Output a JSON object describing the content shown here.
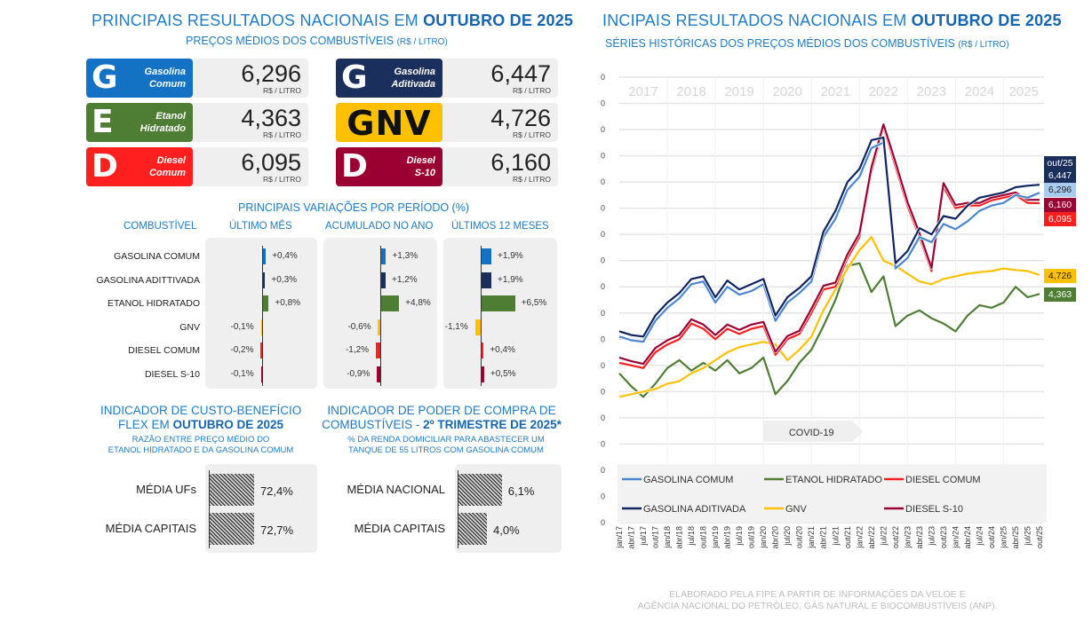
{
  "left": {
    "title_prefix": "PRINCIPAIS RESULTADOS NACIONAIS EM ",
    "title_bold": "OUTUBRO DE 2025",
    "subtitle": "PREÇOS MÉDIOS DOS COMBUSTÍVEIS",
    "subtitle_unit": "(R$ / LITRO)",
    "unit": "R$ / LITRO",
    "prices": [
      {
        "letter": "G",
        "name1": "Gasolina",
        "name2": "Comum",
        "value": "6,296",
        "color": "#1472c4"
      },
      {
        "letter": "G",
        "name1": "Gasolina",
        "name2": "Aditivada",
        "value": "6,447",
        "color": "#1a2f5c"
      },
      {
        "letter": "E",
        "name1": "Etanol",
        "name2": "Hidratado",
        "value": "4,363",
        "color": "#4e7d34"
      },
      {
        "letter": "GNV",
        "name1": "",
        "name2": "",
        "value": "4,726",
        "color": "#ffc000"
      },
      {
        "letter": "D",
        "name1": "Diesel",
        "name2": "Comum",
        "value": "6,095",
        "color": "#ff1f1f"
      },
      {
        "letter": "D",
        "name1": "Diesel",
        "name2": "S-10",
        "value": "6,160",
        "color": "#9b0033"
      }
    ],
    "variations": {
      "title": "PRINCIPAIS VARIAÇÕES POR PERÍODO (%)",
      "col_fuel": "COMBUSTÍVEL",
      "periods": [
        "ÚLTIMO MÊS",
        "ACUMULADO NO ANO",
        "ÚLTIMOS 12 MESES"
      ],
      "fuels": [
        "GASOLINA COMUM",
        "GASOLINA ADITTIVADA",
        "ETANOL HIDRATADO",
        "GNV",
        "DIESEL COMUM",
        "DIESEL  S-10"
      ],
      "colors": [
        "#1472c4",
        "#1a2f5c",
        "#4e7d34",
        "#ffc000",
        "#ff1f1f",
        "#9b0033"
      ],
      "values": [
        [
          0.4,
          0.3,
          0.8,
          -0.1,
          -0.2,
          -0.1
        ],
        [
          1.3,
          1.2,
          4.8,
          -0.6,
          -1.2,
          -0.9
        ],
        [
          1.9,
          1.9,
          6.5,
          -1.1,
          0.4,
          0.5
        ]
      ],
      "labels": [
        [
          "+0,4%",
          "+0,3%",
          "+0,8%",
          "-0,1%",
          "-0,2%",
          "-0,1%"
        ],
        [
          "+1,3%",
          "+1,2%",
          "+4,8%",
          "-0,6%",
          "-1,2%",
          "-0,9%"
        ],
        [
          "+1,9%",
          "+1,9%",
          "+6,5%",
          "-1,1%",
          "+0,4%",
          "+0,5%"
        ]
      ]
    },
    "flex": {
      "title1": "INDICADOR DE CUSTO-BENEFÍCIO",
      "title2_prefix": "FLEX EM ",
      "title2_bold": "OUTUBRO  DE 2025",
      "sub1": "RAZÃO ENTRE PREÇO MÉDIO DO",
      "sub2": "ETANOL HIDRATADO E DA GASOLINA COMUM",
      "rows": [
        {
          "label": "MÉDIA UFs",
          "value": 72.4,
          "text": "72,4%"
        },
        {
          "label": "MÉDIA CAPITAIS",
          "value": 72.7,
          "text": "72,7%"
        }
      ]
    },
    "power": {
      "title1": "INDICADOR DE PODER DE COMPRA DE",
      "title2_prefix": "COMBUSTÍVEIS - ",
      "title2_bold": "2º TRIMESTRE DE 2025*",
      "sub1": "% DA RENDA DOMICILIAR PARA ABASTECER UM",
      "sub2": "TANQUE DE 55 LITROS COM GASOLINA COMUM",
      "rows": [
        {
          "label": "MÉDIA NACIONAL",
          "value": 6.1,
          "text": "6,1%"
        },
        {
          "label": "MÉDIA CAPITAIS",
          "value": 4.0,
          "text": "4,0%"
        }
      ]
    }
  },
  "right": {
    "title_prefix": "INCIPAIS RESULTADOS NACIONAIS EM ",
    "title_bold": "OUTUBRO DE 2025",
    "subtitle": "SÉRIES HISTÓRICAS DOS PREÇOS MÉDIOS DOS COMBUSTÍVEIS",
    "subtitle_unit": "(R$ / LITRO)",
    "footer1": "ELABORADO PELA FIPE A PARTIR DE INFORMAÇÕES DA VELOE E",
    "footer2": "AGÊNCIA NACIONAL DO PETRÓLEO, GÁS NATURAL E BIOCOMBUSTÍVEIS (ANP)."
  },
  "chart_data": {
    "type": "line",
    "title": "SÉRIES HISTÓRICAS DOS PREÇOS MÉDIOS DOS COMBUSTÍVEIS (R$ / LITRO)",
    "xlabel": "",
    "ylabel": "R$ / litro",
    "ylim": [
      0,
      8.5
    ],
    "grid": true,
    "legend_position": "bottom",
    "year_labels": [
      "2017",
      "2018",
      "2019",
      "2020",
      "2021",
      "2022",
      "2023",
      "2024",
      "2025"
    ],
    "x": [
      "jan/17",
      "abr/17",
      "jul/17",
      "out/17",
      "jan/18",
      "abr/18",
      "jul/18",
      "out/18",
      "jan/19",
      "abr/19",
      "jul/19",
      "out/19",
      "jan/20",
      "abr/20",
      "jul/20",
      "out/20",
      "jan/21",
      "abr/21",
      "jul/21",
      "out/21",
      "jan/22",
      "abr/22",
      "jul/22",
      "out/22",
      "jan/23",
      "abr/23",
      "jul/23",
      "out/23",
      "jan/24",
      "abr/24",
      "jul/24",
      "out/24",
      "jan/25",
      "abr/25",
      "jul/25",
      "out/25"
    ],
    "annotation": {
      "label": "COVID-19",
      "from": "jan/20",
      "to": "jan/22"
    },
    "end_label_period": "out/25",
    "series": [
      {
        "name": "GASOLINA COMUM",
        "color": "#4a86d0",
        "end_label": "6,296",
        "end_bg": "#a9cbef",
        "end_fg": "#222",
        "values": [
          3.55,
          3.48,
          3.45,
          3.85,
          4.1,
          4.28,
          4.55,
          4.6,
          4.2,
          4.5,
          4.35,
          4.42,
          4.55,
          3.85,
          4.2,
          4.38,
          4.6,
          5.45,
          5.8,
          6.35,
          6.6,
          7.15,
          7.25,
          4.85,
          5.05,
          5.45,
          5.35,
          5.7,
          5.6,
          5.75,
          5.95,
          6.05,
          6.1,
          6.25,
          6.2,
          6.296
        ]
      },
      {
        "name": "ETANOL HIDRATADO",
        "color": "#4e7d34",
        "end_label": "4,363",
        "end_bg": "#4e7d34",
        "end_fg": "#fff",
        "values": [
          2.85,
          2.6,
          2.4,
          2.65,
          2.95,
          3.1,
          2.9,
          3.05,
          2.9,
          3.1,
          2.85,
          2.95,
          3.15,
          2.45,
          2.7,
          3.05,
          3.3,
          3.75,
          4.25,
          4.9,
          4.95,
          4.4,
          4.7,
          3.75,
          3.95,
          4.05,
          3.9,
          3.8,
          3.65,
          3.95,
          4.15,
          4.1,
          4.2,
          4.5,
          4.3,
          4.363
        ]
      },
      {
        "name": "DIESEL COMUM",
        "color": "#ff1f1f",
        "end_label": "6,095",
        "end_bg": "#ff1f1f",
        "end_fg": "#fff",
        "values": [
          3.05,
          3.0,
          2.95,
          3.25,
          3.4,
          3.5,
          3.8,
          3.7,
          3.5,
          3.7,
          3.6,
          3.7,
          3.75,
          3.2,
          3.5,
          3.6,
          4.0,
          4.45,
          4.5,
          5.05,
          5.45,
          6.7,
          7.55,
          6.8,
          6.05,
          5.45,
          4.8,
          6.4,
          6.0,
          6.05,
          6.05,
          6.15,
          6.2,
          6.25,
          6.1,
          6.095
        ]
      },
      {
        "name": "GASOLINA ADITIVADA",
        "color": "#0f2460",
        "end_label": "out/25\n6,447",
        "end_bg": "#1a2f5c",
        "end_fg": "#fff",
        "values": [
          3.65,
          3.58,
          3.55,
          3.95,
          4.2,
          4.38,
          4.65,
          4.7,
          4.3,
          4.62,
          4.45,
          4.55,
          4.65,
          3.95,
          4.3,
          4.48,
          4.7,
          5.55,
          5.95,
          6.5,
          6.75,
          7.3,
          7.35,
          4.95,
          5.18,
          5.62,
          5.5,
          5.85,
          5.8,
          6.05,
          6.2,
          6.25,
          6.3,
          6.4,
          6.43,
          6.447
        ]
      },
      {
        "name": "GNV",
        "color": "#ffc000",
        "end_label": "4,726",
        "end_bg": "#ffc000",
        "end_fg": "#222",
        "values": [
          2.4,
          2.45,
          2.5,
          2.55,
          2.65,
          2.7,
          2.85,
          2.95,
          3.1,
          3.25,
          3.35,
          3.4,
          3.45,
          3.4,
          3.1,
          3.3,
          3.55,
          4.05,
          4.45,
          4.85,
          5.2,
          5.45,
          5.0,
          4.9,
          4.75,
          4.6,
          4.55,
          4.65,
          4.7,
          4.75,
          4.78,
          4.8,
          4.85,
          4.82,
          4.8,
          4.726
        ]
      },
      {
        "name": "DIESEL S-10",
        "color": "#9b0033",
        "end_label": "6,160",
        "end_bg": "#9b0033",
        "end_fg": "#fff",
        "values": [
          3.15,
          3.08,
          3.03,
          3.33,
          3.48,
          3.58,
          3.88,
          3.78,
          3.58,
          3.78,
          3.68,
          3.78,
          3.83,
          3.26,
          3.56,
          3.66,
          4.08,
          4.52,
          4.58,
          5.12,
          5.52,
          6.78,
          7.6,
          6.88,
          6.12,
          5.52,
          4.86,
          6.48,
          6.06,
          6.1,
          6.1,
          6.2,
          6.25,
          6.3,
          6.16,
          6.16
        ]
      }
    ]
  }
}
